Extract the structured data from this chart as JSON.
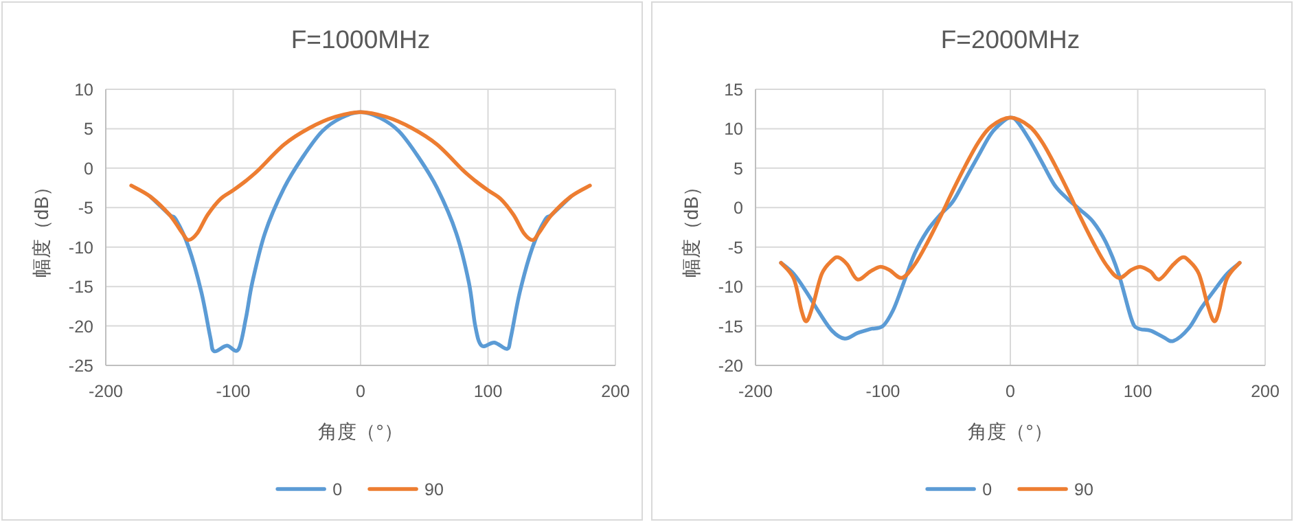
{
  "chart_data": [
    {
      "type": "line",
      "title": "F=1000MHz",
      "xlabel": "角度（°）",
      "ylabel": "幅度（dB）",
      "xlim": [
        -200,
        200
      ],
      "xticks": [
        -200,
        -100,
        0,
        100,
        200
      ],
      "ylim": [
        -25,
        10
      ],
      "yticks": [
        -25,
        -20,
        -15,
        -10,
        -5,
        0,
        5,
        10
      ],
      "grid": true,
      "legend": "bottom",
      "marker": "none",
      "line_style": "solid",
      "series": [
        {
          "name": "0",
          "color": "#5b9bd5",
          "x": [
            -165,
            -150,
            -145,
            -135,
            -125,
            -118,
            -115,
            -105,
            -96,
            -90,
            -85,
            -75,
            -60,
            -45,
            -30,
            -15,
            0,
            15,
            30,
            45,
            60,
            75,
            85,
            90,
            95,
            105,
            115,
            118,
            125,
            135,
            145,
            150,
            165
          ],
          "values": [
            -3.6,
            -5.9,
            -6.5,
            -10,
            -15.7,
            -21.4,
            -23.2,
            -22.5,
            -23,
            -19,
            -14.5,
            -8.2,
            -2.5,
            1.5,
            4.7,
            6.4,
            7.1,
            6.4,
            4.7,
            1.5,
            -2.5,
            -8.2,
            -14.5,
            -20,
            -22.5,
            -22.1,
            -22.9,
            -21.4,
            -15.7,
            -10,
            -6.5,
            -5.9,
            -3.6
          ]
        },
        {
          "name": "90",
          "color": "#ed7d31",
          "x": [
            -180,
            -165,
            -150,
            -140,
            -135,
            -128,
            -120,
            -110,
            -100,
            -90,
            -80,
            -60,
            -40,
            -20,
            0,
            20,
            40,
            60,
            80,
            90,
            100,
            110,
            120,
            128,
            135,
            140,
            150,
            165,
            180
          ],
          "values": [
            -2.2,
            -3.6,
            -5.9,
            -8.2,
            -9.1,
            -8.2,
            -5.9,
            -3.9,
            -2.8,
            -1.6,
            -0.2,
            3,
            5.1,
            6.5,
            7.1,
            6.5,
            5.1,
            3,
            -0.2,
            -1.6,
            -2.8,
            -3.9,
            -5.9,
            -8.2,
            -9.1,
            -8.2,
            -5.9,
            -3.6,
            -2.2
          ]
        }
      ]
    },
    {
      "type": "line",
      "title": "F=2000MHz",
      "xlabel": "角度（°）",
      "ylabel": "幅度（dB）",
      "xlim": [
        -200,
        200
      ],
      "xticks": [
        -200,
        -100,
        0,
        100,
        200
      ],
      "ylim": [
        -20,
        15
      ],
      "yticks": [
        -20,
        -15,
        -10,
        -5,
        0,
        5,
        10,
        15
      ],
      "grid": true,
      "legend": "bottom",
      "marker": "none",
      "line_style": "solid",
      "series": [
        {
          "name": "0",
          "color": "#5b9bd5",
          "x": [
            -180,
            -170,
            -160,
            -150,
            -140,
            -130,
            -120,
            -110,
            -100,
            -92,
            -85,
            -75,
            -65,
            -55,
            -45,
            -35,
            -25,
            -15,
            -5,
            0,
            5,
            15,
            25,
            35,
            45,
            55,
            65,
            75,
            85,
            95,
            100,
            110,
            120,
            128,
            140,
            150,
            160,
            170,
            180
          ],
          "values": [
            -7,
            -8.4,
            -10.7,
            -13.3,
            -15.6,
            -16.6,
            -15.9,
            -15.4,
            -15,
            -13,
            -10.1,
            -5.8,
            -2.9,
            -0.9,
            0.8,
            3.7,
            6.6,
            9.4,
            11,
            11.4,
            11,
            8.6,
            5.7,
            2.8,
            1.1,
            -0.3,
            -1.8,
            -4.4,
            -8.4,
            -14.1,
            -15.3,
            -15.6,
            -16.4,
            -16.9,
            -15.3,
            -12.7,
            -10.5,
            -8.4,
            -7
          ]
        },
        {
          "name": "90",
          "color": "#ed7d31",
          "x": [
            -180,
            -170,
            -164,
            -160,
            -155,
            -148,
            -140,
            -135,
            -128,
            -120,
            -110,
            -102,
            -95,
            -85,
            -75,
            -65,
            -55,
            -45,
            -35,
            -25,
            -15,
            0,
            15,
            25,
            35,
            45,
            55,
            65,
            75,
            85,
            95,
            102,
            110,
            117,
            128,
            135,
            140,
            148,
            155,
            160,
            164,
            170,
            180
          ],
          "values": [
            -7,
            -9,
            -13,
            -14.4,
            -12.4,
            -8.4,
            -6.7,
            -6.3,
            -7.2,
            -9.1,
            -8.1,
            -7.5,
            -7.9,
            -8.9,
            -7.2,
            -4.4,
            -1.2,
            2.2,
            5.4,
            8.3,
            10.3,
            11.4,
            10.3,
            8.3,
            5.4,
            2.2,
            -1.2,
            -4.4,
            -7.2,
            -8.9,
            -7.9,
            -7.5,
            -8.1,
            -9.1,
            -7.2,
            -6.3,
            -6.7,
            -8.4,
            -12.4,
            -14.4,
            -13,
            -9,
            -7
          ]
        }
      ]
    }
  ]
}
